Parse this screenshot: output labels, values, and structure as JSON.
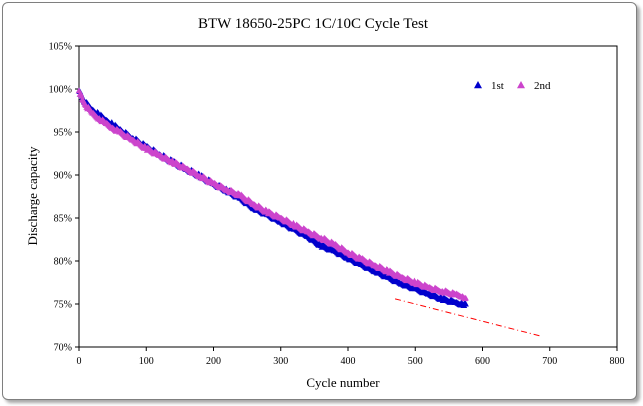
{
  "chart_data": {
    "type": "scatter",
    "title": "BTW 18650-25PC  1C/10C  Cycle Test",
    "xlabel": "Cycle number",
    "ylabel": "Discharge capacity",
    "xlim": [
      0,
      800
    ],
    "ylim": [
      70,
      105
    ],
    "x_ticks": [
      "0",
      "100",
      "200",
      "300",
      "400",
      "500",
      "600",
      "700",
      "800"
    ],
    "y_ticks": [
      "70%",
      "75%",
      "80%",
      "85%",
      "90%",
      "95%",
      "100%",
      "105%"
    ],
    "grid": false,
    "legend": "top-right",
    "series": [
      {
        "name": "1st",
        "color": "#0000cc",
        "marker": "triangle",
        "x": [
          0,
          5,
          10,
          20,
          30,
          40,
          50,
          60,
          80,
          100,
          120,
          140,
          160,
          180,
          200,
          220,
          240,
          260,
          280,
          300,
          320,
          340,
          360,
          380,
          400,
          420,
          440,
          460,
          480,
          500,
          520,
          540,
          560,
          570,
          575
        ],
        "y": [
          99.8,
          99.0,
          98.4,
          97.6,
          97.0,
          96.4,
          95.9,
          95.3,
          94.3,
          93.3,
          92.4,
          91.5,
          90.7,
          89.9,
          89.0,
          88.2,
          87.3,
          86.2,
          85.4,
          84.6,
          83.7,
          82.9,
          81.8,
          81.2,
          80.4,
          79.6,
          78.9,
          78.1,
          77.4,
          76.8,
          76.2,
          75.6,
          75.2,
          75.0,
          75.0
        ]
      },
      {
        "name": "2nd",
        "color": "#cc44cc",
        "marker": "triangle",
        "x": [
          0,
          5,
          10,
          20,
          30,
          40,
          50,
          60,
          80,
          100,
          120,
          140,
          160,
          180,
          200,
          220,
          240,
          260,
          280,
          300,
          320,
          340,
          360,
          380,
          400,
          420,
          440,
          460,
          480,
          500,
          520,
          540,
          560,
          570,
          575
        ],
        "y": [
          99.8,
          98.8,
          98.1,
          97.2,
          96.6,
          96.0,
          95.5,
          95.0,
          94.1,
          93.1,
          92.3,
          91.5,
          90.7,
          89.9,
          89.0,
          88.3,
          87.6,
          86.6,
          85.7,
          85.0,
          84.2,
          83.4,
          82.7,
          81.9,
          81.0,
          80.2,
          79.5,
          78.8,
          78.1,
          77.5,
          76.9,
          76.5,
          76.1,
          75.9,
          75.7
        ]
      }
    ],
    "trendline": {
      "color": "#ff0000",
      "style": "dash-dot",
      "x": [
        470,
        685
      ],
      "y": [
        75.6,
        71.3
      ]
    }
  }
}
